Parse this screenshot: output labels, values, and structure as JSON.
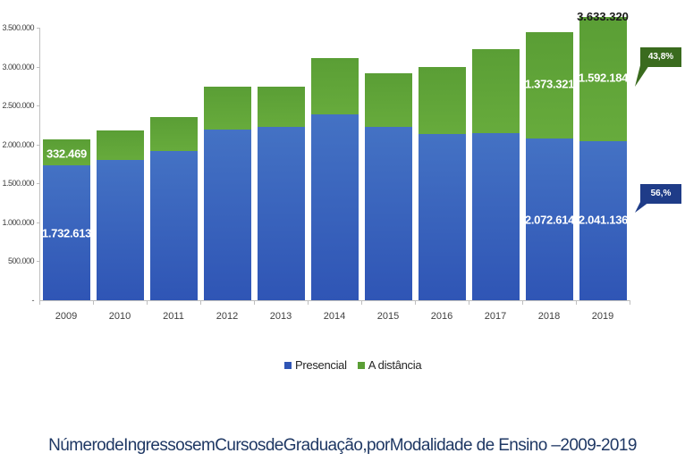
{
  "chart_data": {
    "type": "bar",
    "stacked": true,
    "title": "",
    "caption": "Número de Ingressos em Cursos de Graduação, por Modalidade de Ensino –2009-2019",
    "xlabel": "",
    "ylabel": "",
    "ylim": [
      0,
      3500000
    ],
    "yticks": [
      "-",
      "500.000",
      "1.000.000",
      "1.500.000",
      "2.000.000",
      "2.500.000",
      "3.000.000",
      "3.500.000"
    ],
    "categories": [
      "2009",
      "2010",
      "2011",
      "2012",
      "2013",
      "2014",
      "2015",
      "2016",
      "2017",
      "2018",
      "2019"
    ],
    "series": [
      {
        "name": "Presencial",
        "color": "#3a62c0",
        "values": [
          1732613,
          1800000,
          1920000,
          2190000,
          2230000,
          2390000,
          2230000,
          2140000,
          2150000,
          2072614,
          2041136
        ]
      },
      {
        "name": "A distância",
        "color": "#5fa53a",
        "values": [
          332469,
          380000,
          430000,
          550000,
          510000,
          720000,
          690000,
          850000,
          1080000,
          1373321,
          1592184
        ]
      }
    ],
    "data_labels": [
      {
        "category": "2009",
        "series": "Presencial",
        "text": "1.732.613"
      },
      {
        "category": "2009",
        "series": "A distância",
        "text": "332.469"
      },
      {
        "category": "2018",
        "series": "Presencial",
        "text": "2.072.614"
      },
      {
        "category": "2018",
        "series": "A distância",
        "text": "1.373.321"
      },
      {
        "category": "2019",
        "series": "Presencial",
        "text": "2.041.136"
      },
      {
        "category": "2019",
        "series": "A distância",
        "text": "1.592.184"
      },
      {
        "category": "2019",
        "series": "total",
        "text": "3.633.320"
      }
    ],
    "annotations": [
      {
        "text": "43,8%",
        "target": "A distância 2019",
        "color": "#3a6b1e"
      },
      {
        "text": "56,%",
        "target": "Presencial 2019",
        "color": "#1f3c88"
      }
    ],
    "legend": {
      "position": "bottom",
      "entries": [
        "Presencial",
        "A distância"
      ]
    },
    "grid": false
  },
  "axis": {
    "yticks": [
      {
        "label": "3.500.000",
        "value": 3500000
      },
      {
        "label": "3.000.000",
        "value": 3000000
      },
      {
        "label": "2.500.000",
        "value": 2500000
      },
      {
        "label": "2.000.000",
        "value": 2000000
      },
      {
        "label": "1.500.000",
        "value": 1500000
      },
      {
        "label": "1.000.000",
        "value": 1000000
      },
      {
        "label": "500.000",
        "value": 500000
      },
      {
        "label": "-",
        "value": 0
      }
    ]
  },
  "labels": {
    "y2009_green": "332.469",
    "y2009_blue": "1.732.613",
    "y2018_green": "1.373.321",
    "y2018_blue": "2.072.614",
    "y2019_green": "1.592.184",
    "y2019_blue": "2.041.136",
    "y2019_total": "3.633.320",
    "callout_green": "43,8%",
    "callout_blue": "56,%"
  },
  "legend": {
    "presencial": "Presencial",
    "distancia": "A distância",
    "presencial_color": "#2f55b5",
    "distancia_color": "#5a9e35"
  },
  "caption": "NúmerodeIngressosemCursosdeGraduação,porModalidade de Ensino –2009-2019"
}
